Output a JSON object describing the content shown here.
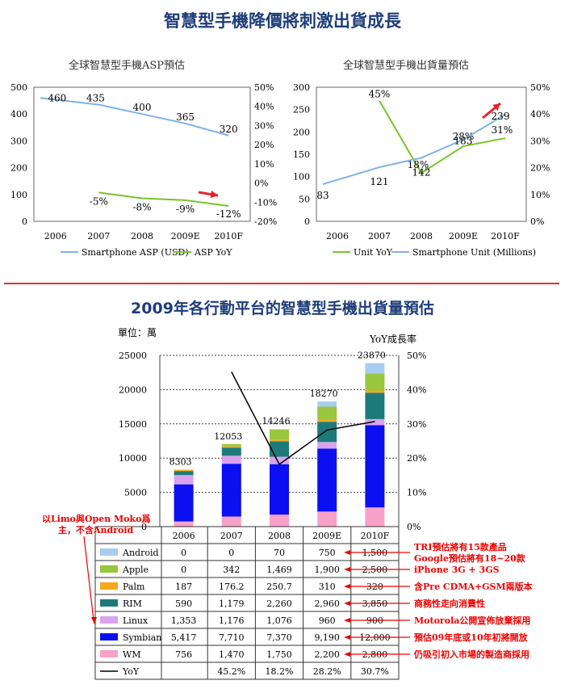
{
  "header": {
    "main_title": "智慧型手機降價將刺激出貨成長",
    "section2_title": "2009年各行動平台的智慧型手機出貨量預估"
  },
  "colors": {
    "asp_line": "#7fb2e5",
    "yoy_line": "#7cc22a",
    "arrow": "#e8232a",
    "title": "#1f3d7a"
  },
  "chart_data": [
    {
      "type": "line",
      "title": "全球智慧型手機ASP預估",
      "categories": [
        "2006",
        "2007",
        "2008",
        "2009E",
        "2010F"
      ],
      "y_left": {
        "ticks": [
          "0",
          "100",
          "200",
          "300",
          "400",
          "500"
        ],
        "ylim": [
          0,
          500
        ]
      },
      "y_right": {
        "ticks": [
          "-20%",
          "-10%",
          "0%",
          "10%",
          "20%",
          "30%",
          "40%",
          "50%"
        ],
        "ylim": [
          -20,
          50
        ]
      },
      "series": [
        {
          "name": "Smartphone ASP (USD)",
          "axis": "left",
          "values": [
            460,
            435,
            400,
            365,
            320
          ],
          "labels": [
            "460",
            "435",
            "400",
            "365",
            "320"
          ]
        },
        {
          "name": "ASP YoY",
          "axis": "right",
          "values": [
            null,
            -5,
            -8,
            -9,
            -12
          ],
          "labels": [
            "",
            "-5%",
            "-8%",
            "-9%",
            "-12%"
          ]
        }
      ]
    },
    {
      "type": "line",
      "title": "全球智慧型手機出貨量預估",
      "categories": [
        "2006",
        "2007",
        "2008",
        "2009E",
        "2010F"
      ],
      "y_left": {
        "ticks": [
          "0",
          "50",
          "100",
          "150",
          "200",
          "250",
          "300"
        ],
        "ylim": [
          0,
          300
        ]
      },
      "y_right": {
        "ticks": [
          "0%",
          "10%",
          "20%",
          "30%",
          "40%",
          "50%"
        ],
        "ylim": [
          0,
          50
        ]
      },
      "series": [
        {
          "name": "Unit YoY",
          "axis": "right",
          "values": [
            null,
            45,
            18,
            28,
            31
          ],
          "labels": [
            "",
            "45%",
            "18%",
            "28%",
            "31%"
          ]
        },
        {
          "name": "Smartphone Unit (Millions)",
          "axis": "left",
          "values": [
            83,
            121,
            142,
            183,
            239
          ],
          "labels": [
            "83",
            "121",
            "142",
            "183",
            "239"
          ]
        }
      ]
    },
    {
      "type": "bar",
      "stacked": true,
      "unit_label": "單位：萬",
      "right_axis_label": "YoY成長率",
      "categories": [
        "2006",
        "2007",
        "2008",
        "2009E",
        "2010F"
      ],
      "totals": [
        "8303",
        "12053",
        "14246",
        "18270",
        "23870"
      ],
      "y_left": {
        "ticks": [
          "0",
          "5000",
          "10000",
          "15000",
          "20000",
          "25000"
        ],
        "ylim": [
          0,
          25000
        ]
      },
      "y_right": {
        "ticks": [
          "0%",
          "10%",
          "20%",
          "30%",
          "40%",
          "50%"
        ],
        "ylim": [
          0,
          50
        ]
      },
      "series": [
        {
          "name": "WM",
          "color": "#f7a1c8",
          "values": [
            756,
            1470,
            1750,
            2200,
            2800
          ],
          "labels": [
            "756",
            "1,470",
            "1,750",
            "2,200",
            "2,800"
          ]
        },
        {
          "name": "Symbian",
          "color": "#0a10f0",
          "values": [
            5417,
            7710,
            7370,
            9190,
            12000
          ],
          "labels": [
            "5,417",
            "7,710",
            "7,370",
            "9,190",
            "12,000"
          ]
        },
        {
          "name": "Linux",
          "color": "#d9a3ee",
          "values": [
            1353,
            1176,
            1076,
            960,
            900
          ],
          "labels": [
            "1,353",
            "1,176",
            "1,076",
            "960",
            "900"
          ]
        },
        {
          "name": "RIM",
          "color": "#1c7b7a",
          "values": [
            590,
            1179,
            2260,
            2960,
            3850
          ],
          "labels": [
            "590",
            "1,179",
            "2,260",
            "2,960",
            "3,850"
          ]
        },
        {
          "name": "Palm",
          "color": "#f5a81e",
          "values": [
            187,
            176.2,
            250.7,
            310,
            320
          ],
          "labels": [
            "187",
            "176.2",
            "250.7",
            "310",
            "320"
          ]
        },
        {
          "name": "Apple",
          "color": "#98c63c",
          "values": [
            0,
            342,
            1469,
            1900,
            2500
          ],
          "labels": [
            "0",
            "342",
            "1,469",
            "1,900",
            "2,500"
          ]
        },
        {
          "name": "Android",
          "color": "#a8cdf2",
          "values": [
            0,
            0,
            70,
            750,
            1500
          ],
          "labels": [
            "0",
            "0",
            "70",
            "750",
            "1,500"
          ]
        }
      ],
      "yoy": {
        "name": "YoY",
        "values": [
          null,
          45.2,
          18.2,
          28.2,
          30.7
        ],
        "labels": [
          "",
          "45.2%",
          "18.2%",
          "28.2%",
          "30.7%"
        ]
      }
    }
  ],
  "annotations": {
    "left_note": [
      "以Limo與Open Moko爲",
      "主，不含Android"
    ],
    "android": [
      "TRI預估將有15款產品",
      "Google預估將有18~20款"
    ],
    "apple": "iPhone 3G + 3GS",
    "palm": "含Pre CDMA+GSM兩版本",
    "rim": "商務性走向消費性",
    "linux": "Motorola公開宣佈放棄採用",
    "symbian": "預估09年底或10年初將開放",
    "wm": "仍吸引初入市場的製造商採用"
  }
}
